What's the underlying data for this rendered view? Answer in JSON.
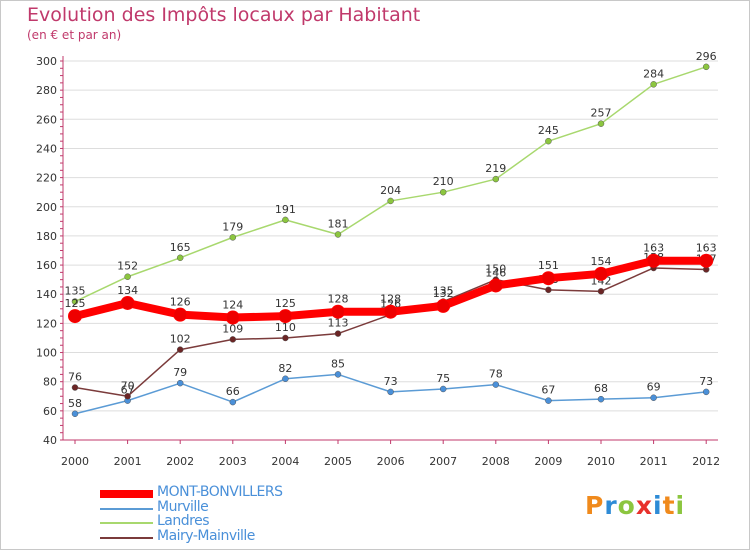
{
  "title": "Evolution des Impôts locaux par Habitant",
  "subtitle": "(en € et par an)",
  "colors": {
    "title": "#c0396b",
    "axis_text": "#333333",
    "grid": "#dddddd",
    "axis": "#c0396b"
  },
  "logo": {
    "letters": [
      "P",
      "r",
      "o",
      "x",
      "i",
      "t",
      "i"
    ],
    "colors": [
      "#f08a1c",
      "#2e8bd6",
      "#8cc63f",
      "#e8312c",
      "#2e8bd6",
      "#f08a1c",
      "#8cc63f"
    ]
  },
  "chart_data": {
    "type": "line",
    "title": "Evolution des Impôts locaux par Habitant",
    "subtitle": "(en € et par an)",
    "xlabel": "",
    "ylabel": "",
    "x": [
      "2000",
      "2001",
      "2002",
      "2003",
      "2004",
      "2005",
      "2006",
      "2007",
      "2008",
      "2009",
      "2010",
      "2011",
      "2012"
    ],
    "ylim": [
      40,
      300
    ],
    "yticks": [
      40,
      60,
      80,
      100,
      120,
      140,
      160,
      180,
      200,
      220,
      240,
      260,
      280,
      300
    ],
    "grid": "horizontal",
    "legend_position": "bottom-left",
    "series": [
      {
        "name": "Murville",
        "color": "#5b9bd5",
        "point_color": "#4a90d9",
        "width": "thin",
        "values": [
          58,
          67,
          79,
          66,
          82,
          85,
          73,
          75,
          78,
          67,
          68,
          69,
          73
        ],
        "labels": [
          "58",
          "67",
          "79",
          "66",
          "82",
          "85",
          "73",
          "75",
          "78",
          "67",
          "68",
          "69",
          "73"
        ]
      },
      {
        "name": "Landres",
        "color": "#a8d86e",
        "point_color": "#8cc63f",
        "width": "thin",
        "values": [
          135,
          152,
          165,
          179,
          191,
          181,
          204,
          210,
          219,
          245,
          257,
          284,
          296
        ],
        "labels": [
          "135",
          "152",
          "165",
          "179",
          "191",
          "181",
          "204",
          "210",
          "219",
          "245",
          "257",
          "284",
          "296"
        ]
      },
      {
        "name": "Mairy-Mainville",
        "color": "#7b3b3b",
        "point_color": "#6b2525",
        "width": "thin",
        "values": [
          76,
          70,
          102,
          109,
          110,
          113,
          126,
          135,
          150,
          143,
          142,
          158,
          157
        ],
        "labels": [
          "76",
          "70",
          "102",
          "109",
          "110",
          "113",
          "126",
          "135",
          "150",
          "143",
          "142",
          "158",
          "157"
        ]
      },
      {
        "name": "MONT-BONVILLERS",
        "color": "#ff0000",
        "point_color": "#ee0000",
        "width": "thick",
        "values": [
          125,
          134,
          126,
          124,
          125,
          128,
          128,
          132,
          146,
          151,
          154,
          163,
          163
        ],
        "labels": [
          "125",
          "134",
          "126",
          "124",
          "125",
          "128",
          "128",
          "132",
          "146",
          "151",
          "154",
          "163",
          "163"
        ]
      }
    ]
  },
  "legend": [
    {
      "name": "MONT-BONVILLERS",
      "color": "#ff0000",
      "text_color": "#4a90d9",
      "thickness": 8
    },
    {
      "name": "Murville",
      "color": "#5b9bd5",
      "text_color": "#4a90d9",
      "thickness": 2
    },
    {
      "name": "Landres",
      "color": "#a8d86e",
      "text_color": "#4a90d9",
      "thickness": 2
    },
    {
      "name": "Mairy-Mainville",
      "color": "#7b3b3b",
      "text_color": "#4a90d9",
      "thickness": 2
    }
  ]
}
